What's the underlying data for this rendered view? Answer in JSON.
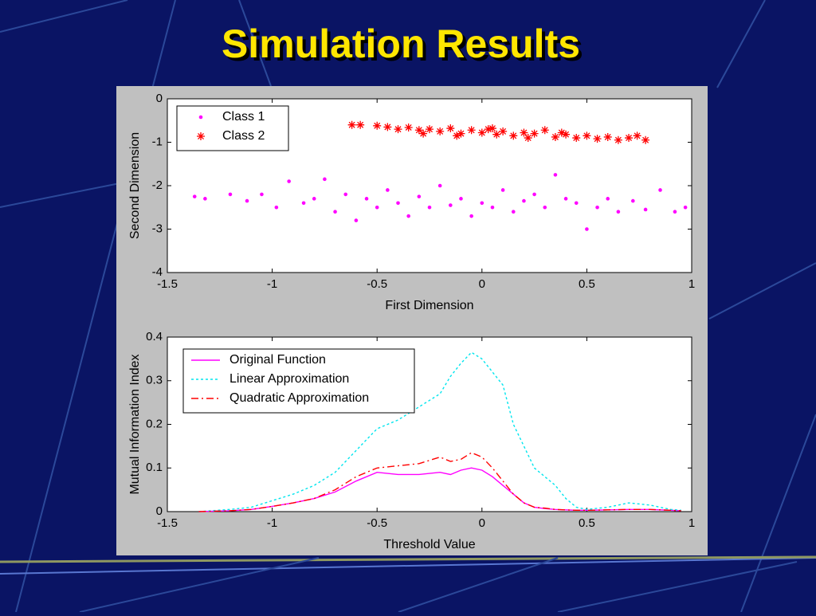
{
  "title": "Simulation Results",
  "chart_data": [
    {
      "type": "scatter",
      "xlabel": "First Dimension",
      "ylabel": "Second Dimension",
      "xlim": [
        -1.5,
        1
      ],
      "ylim": [
        -4,
        0
      ],
      "xticks": [
        -1.5,
        -1,
        -0.5,
        0,
        0.5,
        1
      ],
      "yticks": [
        0,
        -1,
        -2,
        -3,
        -4
      ],
      "legend": "upper left",
      "series": [
        {
          "name": "Class 1",
          "color": "#ff00ff",
          "marker": "dot",
          "x": [
            -1.37,
            -1.32,
            -1.2,
            -1.12,
            -1.05,
            -0.98,
            -0.92,
            -0.85,
            -0.8,
            -0.75,
            -0.7,
            -0.65,
            -0.6,
            -0.55,
            -0.5,
            -0.45,
            -0.4,
            -0.35,
            -0.3,
            -0.25,
            -0.2,
            -0.15,
            -0.1,
            -0.05,
            0,
            0.05,
            0.1,
            0.15,
            0.2,
            0.25,
            0.3,
            0.35,
            0.4,
            0.45,
            0.5,
            0.55,
            0.6,
            0.65,
            0.72,
            0.78,
            0.85,
            0.92,
            0.97
          ],
          "values": [
            -2.25,
            -2.3,
            -2.2,
            -2.35,
            -2.2,
            -2.5,
            -1.9,
            -2.4,
            -2.3,
            -1.85,
            -2.6,
            -2.2,
            -2.8,
            -2.3,
            -2.5,
            -2.1,
            -2.4,
            -2.7,
            -2.25,
            -2.5,
            -2.0,
            -2.45,
            -2.3,
            -2.7,
            -2.4,
            -2.5,
            -2.1,
            -2.6,
            -2.35,
            -2.2,
            -2.5,
            -1.75,
            -2.3,
            -2.4,
            -3.0,
            -2.5,
            -2.3,
            -2.6,
            -2.35,
            -2.55,
            -2.1,
            -2.6,
            -2.5
          ]
        },
        {
          "name": "Class 2",
          "color": "#ff0000",
          "marker": "star",
          "x": [
            -0.62,
            -0.58,
            -0.5,
            -0.45,
            -0.4,
            -0.35,
            -0.3,
            -0.25,
            -0.2,
            -0.15,
            -0.1,
            -0.05,
            0,
            0.03,
            0.07,
            0.1,
            0.15,
            0.2,
            0.25,
            0.3,
            0.35,
            0.4,
            0.45,
            0.5,
            0.55,
            0.6,
            0.65,
            0.7,
            0.74,
            0.78,
            -0.28,
            -0.12,
            0.05,
            0.22,
            0.38
          ],
          "values": [
            -0.6,
            -0.6,
            -0.62,
            -0.65,
            -0.7,
            -0.66,
            -0.72,
            -0.7,
            -0.75,
            -0.68,
            -0.8,
            -0.72,
            -0.78,
            -0.7,
            -0.82,
            -0.75,
            -0.85,
            -0.78,
            -0.8,
            -0.72,
            -0.88,
            -0.82,
            -0.9,
            -0.85,
            -0.92,
            -0.88,
            -0.95,
            -0.9,
            -0.85,
            -0.95,
            -0.8,
            -0.85,
            -0.68,
            -0.9,
            -0.78
          ]
        }
      ]
    },
    {
      "type": "line",
      "xlabel": "Threshold Value",
      "ylabel": "Mutual Information Index",
      "xlim": [
        -1.5,
        1
      ],
      "ylim": [
        0,
        0.4
      ],
      "xticks": [
        -1.5,
        -1,
        -0.5,
        0,
        0.5,
        1
      ],
      "yticks": [
        0,
        0.1,
        0.2,
        0.3,
        0.4
      ],
      "legend": "upper left",
      "x": [
        -1.35,
        -1.2,
        -1.1,
        -1.0,
        -0.9,
        -0.8,
        -0.7,
        -0.6,
        -0.5,
        -0.4,
        -0.3,
        -0.2,
        -0.15,
        -0.1,
        -0.05,
        0,
        0.05,
        0.1,
        0.15,
        0.2,
        0.25,
        0.3,
        0.35,
        0.4,
        0.45,
        0.5,
        0.6,
        0.7,
        0.8,
        0.9,
        0.95
      ],
      "series": [
        {
          "name": "Original Function",
          "color": "#ff00ff",
          "linestyle": "solid",
          "values": [
            0,
            0.002,
            0.005,
            0.012,
            0.02,
            0.03,
            0.045,
            0.07,
            0.09,
            0.085,
            0.085,
            0.09,
            0.085,
            0.095,
            0.1,
            0.095,
            0.08,
            0.06,
            0.04,
            0.02,
            0.01,
            0.007,
            0.005,
            0.004,
            0.003,
            0.003,
            0.004,
            0.005,
            0.005,
            0.003,
            0.002
          ]
        },
        {
          "name": "Linear Approximation",
          "color": "#00e5ee",
          "linestyle": "dotted",
          "values": [
            0,
            0.005,
            0.01,
            0.025,
            0.04,
            0.06,
            0.09,
            0.14,
            0.19,
            0.21,
            0.24,
            0.27,
            0.31,
            0.34,
            0.365,
            0.35,
            0.32,
            0.29,
            0.2,
            0.15,
            0.1,
            0.08,
            0.06,
            0.03,
            0.01,
            0.005,
            0.01,
            0.02,
            0.015,
            0.005,
            0.003
          ]
        },
        {
          "name": "Quadratic Approximation",
          "color": "#ff0000",
          "linestyle": "dashdot",
          "values": [
            0,
            0.002,
            0.005,
            0.012,
            0.02,
            0.03,
            0.05,
            0.08,
            0.1,
            0.105,
            0.11,
            0.125,
            0.115,
            0.12,
            0.135,
            0.125,
            0.1,
            0.07,
            0.04,
            0.02,
            0.01,
            0.008,
            0.005,
            0.004,
            0.003,
            0.003,
            0.004,
            0.005,
            0.005,
            0.003,
            0.002
          ]
        }
      ]
    }
  ]
}
